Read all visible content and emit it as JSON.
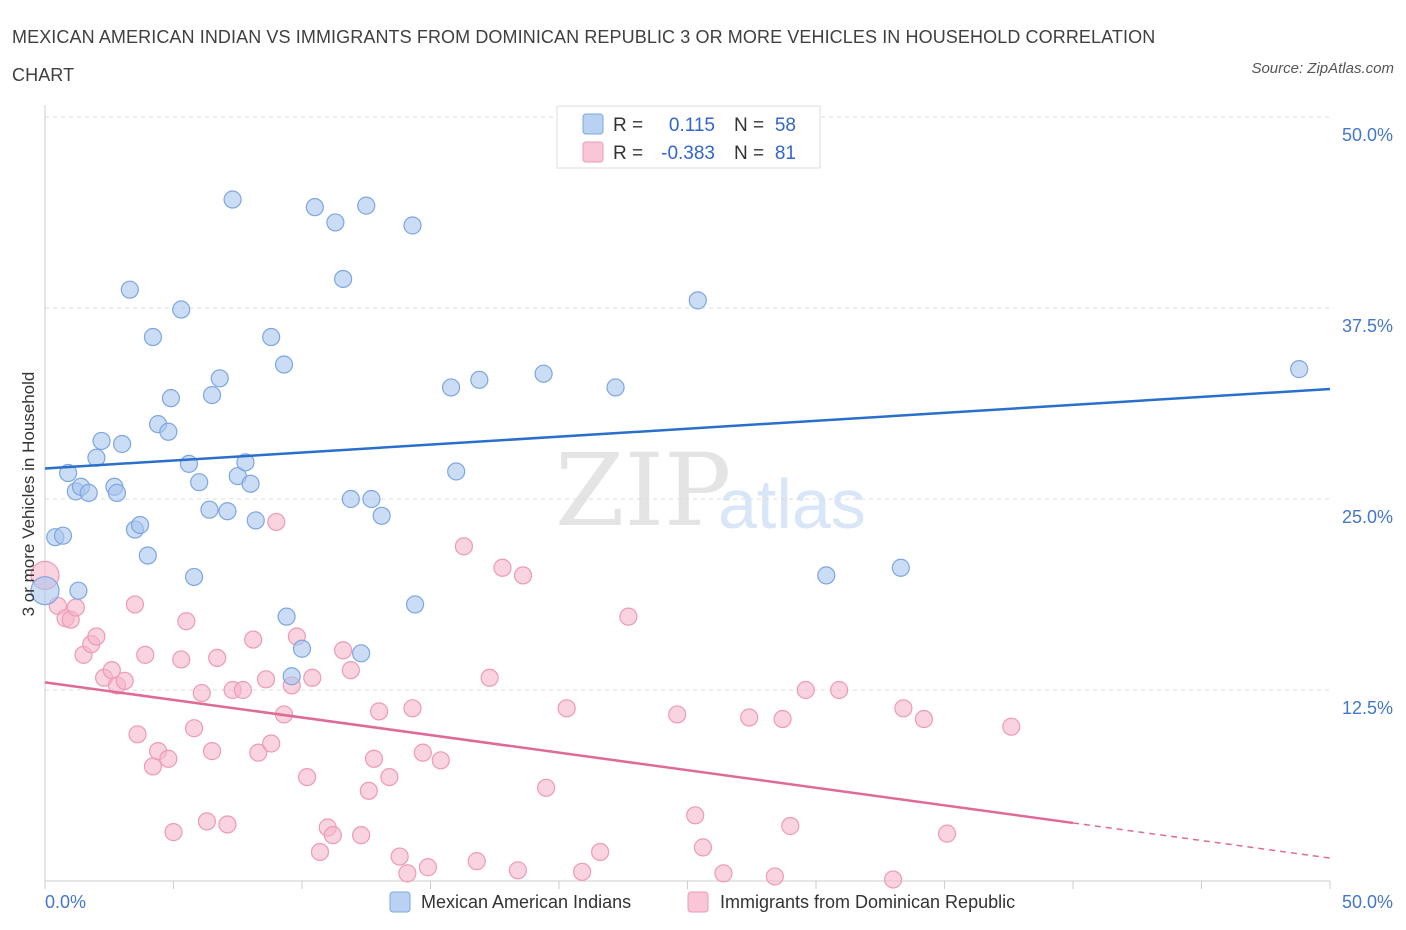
{
  "title": "MEXICAN AMERICAN INDIAN VS IMMIGRANTS FROM DOMINICAN REPUBLIC 3 OR MORE VEHICLES IN HOUSEHOLD CORRELATION CHART",
  "source": "Source: ZipAtlas.com",
  "watermark": {
    "zip": "ZIP",
    "atlas": "atlas"
  },
  "legend_stats": [
    {
      "r_label": "R =",
      "r_value": "0.115",
      "n_label": "N =",
      "n_value": "58",
      "color": "#b9d2f3",
      "stroke": "#7ea6e0"
    },
    {
      "r_label": "R =",
      "r_value": "-0.383",
      "n_label": "N =",
      "n_value": "81",
      "color": "#f8c6d6",
      "stroke": "#ee9ab6"
    }
  ],
  "colors": {
    "blue_point": "#a8c6ee",
    "blue_line": "#2a6fcb",
    "pink_point": "#f5b6ca",
    "pink_line": "#e06a96",
    "tick": "#4477cc"
  },
  "chart_data": {
    "type": "scatter",
    "ylabel": "3 or more Vehicles in Household",
    "xlim": [
      0,
      50
    ],
    "ylim": [
      0,
      50
    ],
    "x_tick_labels": {
      "left": "0.0%",
      "right": "50.0%"
    },
    "y_ticks": [
      {
        "value": 12.5,
        "label": "12.5%"
      },
      {
        "value": 25.0,
        "label": "25.0%"
      },
      {
        "value": 37.5,
        "label": "37.5%"
      },
      {
        "value": 50.0,
        "label": "50.0%"
      }
    ],
    "series": [
      {
        "name": "Mexican American Indians",
        "trend": {
          "x0": 0,
          "y0": 27.0,
          "x1": 50,
          "y1": 32.2,
          "dashed_from": null
        },
        "points": [
          [
            0.0,
            19.0
          ],
          [
            0.4,
            22.5
          ],
          [
            0.7,
            22.6
          ],
          [
            0.9,
            26.7
          ],
          [
            1.2,
            25.5
          ],
          [
            1.4,
            25.8
          ],
          [
            1.7,
            25.4
          ],
          [
            2.0,
            27.7
          ],
          [
            2.2,
            28.8
          ],
          [
            2.7,
            25.8
          ],
          [
            2.8,
            25.4
          ],
          [
            3.0,
            28.6
          ],
          [
            3.3,
            38.7
          ],
          [
            3.5,
            23.0
          ],
          [
            3.7,
            23.3
          ],
          [
            4.0,
            21.3
          ],
          [
            4.2,
            35.6
          ],
          [
            4.4,
            29.9
          ],
          [
            4.8,
            29.4
          ],
          [
            4.9,
            31.6
          ],
          [
            5.3,
            37.4
          ],
          [
            5.6,
            27.3
          ],
          [
            5.8,
            19.9
          ],
          [
            6.0,
            26.1
          ],
          [
            6.4,
            24.3
          ],
          [
            6.5,
            31.8
          ],
          [
            6.8,
            32.9
          ],
          [
            7.1,
            24.2
          ],
          [
            7.3,
            44.6
          ],
          [
            7.5,
            26.5
          ],
          [
            7.8,
            27.4
          ],
          [
            8.0,
            26.0
          ],
          [
            8.2,
            23.6
          ],
          [
            8.8,
            35.6
          ],
          [
            9.3,
            33.8
          ],
          [
            9.4,
            17.3
          ],
          [
            9.6,
            13.4
          ],
          [
            10.0,
            15.2
          ],
          [
            10.5,
            44.1
          ],
          [
            11.3,
            43.1
          ],
          [
            11.6,
            39.4
          ],
          [
            11.9,
            25.0
          ],
          [
            12.3,
            14.9
          ],
          [
            12.5,
            44.2
          ],
          [
            12.7,
            25.0
          ],
          [
            13.1,
            23.9
          ],
          [
            14.3,
            42.9
          ],
          [
            14.4,
            18.1
          ],
          [
            15.8,
            32.3
          ],
          [
            16.0,
            26.8
          ],
          [
            16.9,
            32.8
          ],
          [
            19.4,
            33.2
          ],
          [
            22.2,
            32.3
          ],
          [
            25.4,
            38.0
          ],
          [
            30.4,
            20.0
          ],
          [
            33.3,
            20.5
          ],
          [
            48.8,
            33.5
          ],
          [
            1.3,
            19.0
          ]
        ]
      },
      {
        "name": "Immigrants from Dominican Republic",
        "trend": {
          "x0": 0,
          "y0": 13.0,
          "x1": 50,
          "y1": 1.5,
          "dashed_from": 40
        },
        "points": [
          [
            0.0,
            20.0
          ],
          [
            0.5,
            18.0
          ],
          [
            0.8,
            17.2
          ],
          [
            1.0,
            17.1
          ],
          [
            1.2,
            17.9
          ],
          [
            1.5,
            14.8
          ],
          [
            1.8,
            15.5
          ],
          [
            2.0,
            16.0
          ],
          [
            2.3,
            13.3
          ],
          [
            2.6,
            13.8
          ],
          [
            2.8,
            12.8
          ],
          [
            3.1,
            13.1
          ],
          [
            3.5,
            18.1
          ],
          [
            3.6,
            9.6
          ],
          [
            3.9,
            14.8
          ],
          [
            4.2,
            7.5
          ],
          [
            4.4,
            8.5
          ],
          [
            4.8,
            8.0
          ],
          [
            5.0,
            3.2
          ],
          [
            5.3,
            14.5
          ],
          [
            5.5,
            17.0
          ],
          [
            5.8,
            10.0
          ],
          [
            6.1,
            12.3
          ],
          [
            6.3,
            3.9
          ],
          [
            6.5,
            8.5
          ],
          [
            6.7,
            14.6
          ],
          [
            7.1,
            3.7
          ],
          [
            7.3,
            12.5
          ],
          [
            7.7,
            12.5
          ],
          [
            8.1,
            15.8
          ],
          [
            8.3,
            8.4
          ],
          [
            8.6,
            13.2
          ],
          [
            8.8,
            9.0
          ],
          [
            9.0,
            23.5
          ],
          [
            9.3,
            10.9
          ],
          [
            9.6,
            12.8
          ],
          [
            9.8,
            16.0
          ],
          [
            10.2,
            6.8
          ],
          [
            10.4,
            13.3
          ],
          [
            10.7,
            1.9
          ],
          [
            11.0,
            3.5
          ],
          [
            11.2,
            3.0
          ],
          [
            11.6,
            15.1
          ],
          [
            11.9,
            13.8
          ],
          [
            12.3,
            3.0
          ],
          [
            12.6,
            5.9
          ],
          [
            12.8,
            8.0
          ],
          [
            13.0,
            11.1
          ],
          [
            13.4,
            6.8
          ],
          [
            13.8,
            1.6
          ],
          [
            14.1,
            0.5
          ],
          [
            14.3,
            11.3
          ],
          [
            14.7,
            8.4
          ],
          [
            14.9,
            0.9
          ],
          [
            15.4,
            7.9
          ],
          [
            16.3,
            21.9
          ],
          [
            16.8,
            1.3
          ],
          [
            17.3,
            13.3
          ],
          [
            17.8,
            20.5
          ],
          [
            18.4,
            0.7
          ],
          [
            18.6,
            20.0
          ],
          [
            19.5,
            6.1
          ],
          [
            20.3,
            11.3
          ],
          [
            20.9,
            0.6
          ],
          [
            21.6,
            1.9
          ],
          [
            22.7,
            17.3
          ],
          [
            24.6,
            10.9
          ],
          [
            25.3,
            4.3
          ],
          [
            25.6,
            2.2
          ],
          [
            26.4,
            0.5
          ],
          [
            27.4,
            10.7
          ],
          [
            28.4,
            0.3
          ],
          [
            28.7,
            10.6
          ],
          [
            29.0,
            3.6
          ],
          [
            29.6,
            12.5
          ],
          [
            30.9,
            12.5
          ],
          [
            33.0,
            0.1
          ],
          [
            33.4,
            11.3
          ],
          [
            34.2,
            10.6
          ],
          [
            35.1,
            3.1
          ],
          [
            37.6,
            10.1
          ]
        ]
      }
    ],
    "legend_position": "bottom"
  }
}
